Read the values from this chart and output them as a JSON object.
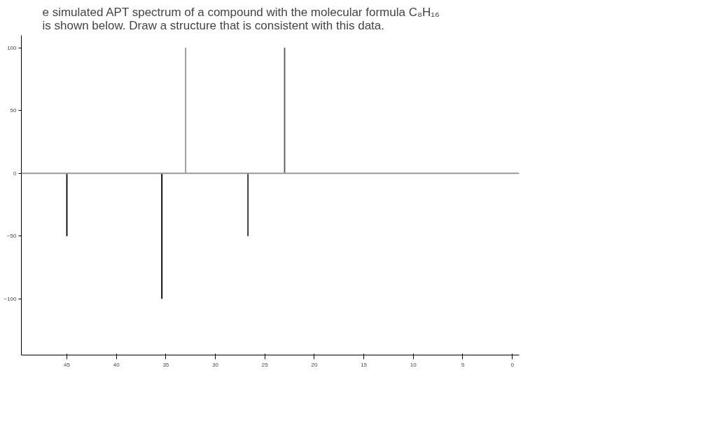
{
  "chart_data": {
    "type": "bar",
    "title": "e simulated APT spectrum of a compound with the molecular formula C₈H₁₆\nis shown below. Draw a structure that is consistent with this data.",
    "x": [
      45,
      35.4,
      33,
      26.7,
      23
    ],
    "values": [
      -50,
      -100,
      100,
      -50,
      100
    ],
    "colors": [
      "#000000",
      "#000000",
      "#999999",
      "#333333",
      "#555555"
    ],
    "xlim": [
      49.6,
      -0.7
    ],
    "xticks": [
      45,
      40,
      35,
      30,
      25,
      20,
      15,
      10,
      5,
      0
    ],
    "ylim": [
      -145,
      110
    ],
    "yticks": [
      100,
      50,
      0,
      -50,
      -100
    ],
    "ref_lines": [
      {
        "axis": "y",
        "value": 0,
        "color": "#999999"
      }
    ],
    "grid": false
  }
}
